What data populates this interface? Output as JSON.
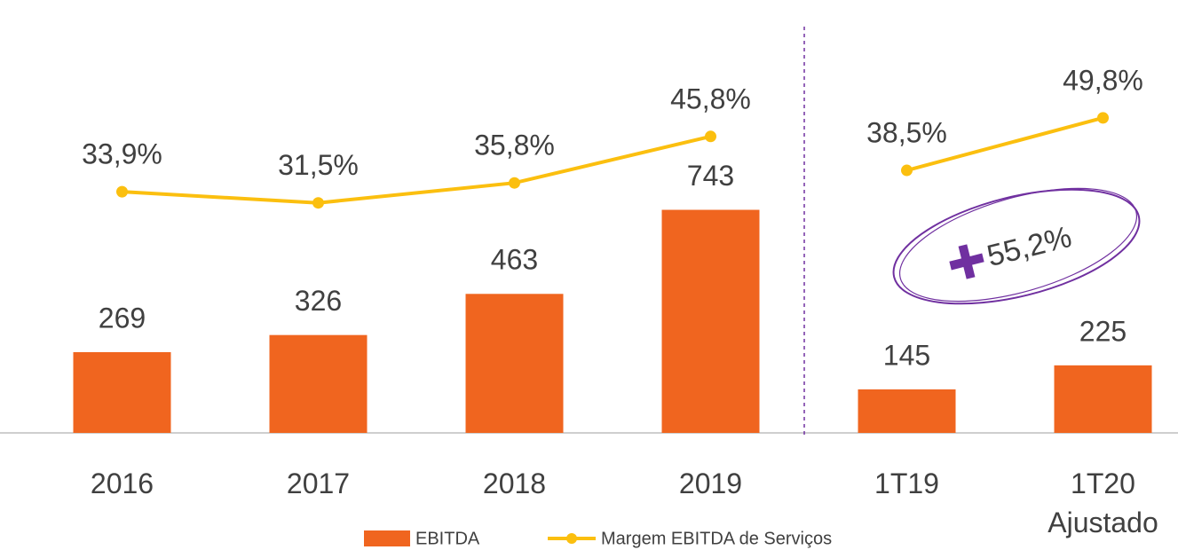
{
  "chart_data": {
    "type": "bar+line",
    "categories": [
      "2016",
      "2017",
      "2018",
      "2019",
      "1T19",
      "1T20 Ajustado"
    ],
    "series": [
      {
        "name": "EBITDA",
        "type": "bar",
        "color": "#f0651f",
        "values": [
          269,
          326,
          463,
          743,
          145,
          225
        ]
      },
      {
        "name": "Margem EBITDA de Serviços",
        "type": "line",
        "axis": "y2",
        "color": "#fbbf0f",
        "values": [
          33.9,
          31.5,
          35.8,
          45.8,
          38.5,
          49.8
        ],
        "value_labels": [
          "33,9%",
          "31,5%",
          "35,8%",
          "45,8%",
          "38,5%",
          "49,8%"
        ]
      }
    ],
    "ylim": [
      0,
      1300
    ],
    "y2lim": [
      -18,
      66
    ],
    "separator_after": "2019",
    "separator_color": "#7030a0",
    "annotation": {
      "text": "55,2%",
      "color": "#7030a0"
    },
    "legend": "bottom"
  }
}
